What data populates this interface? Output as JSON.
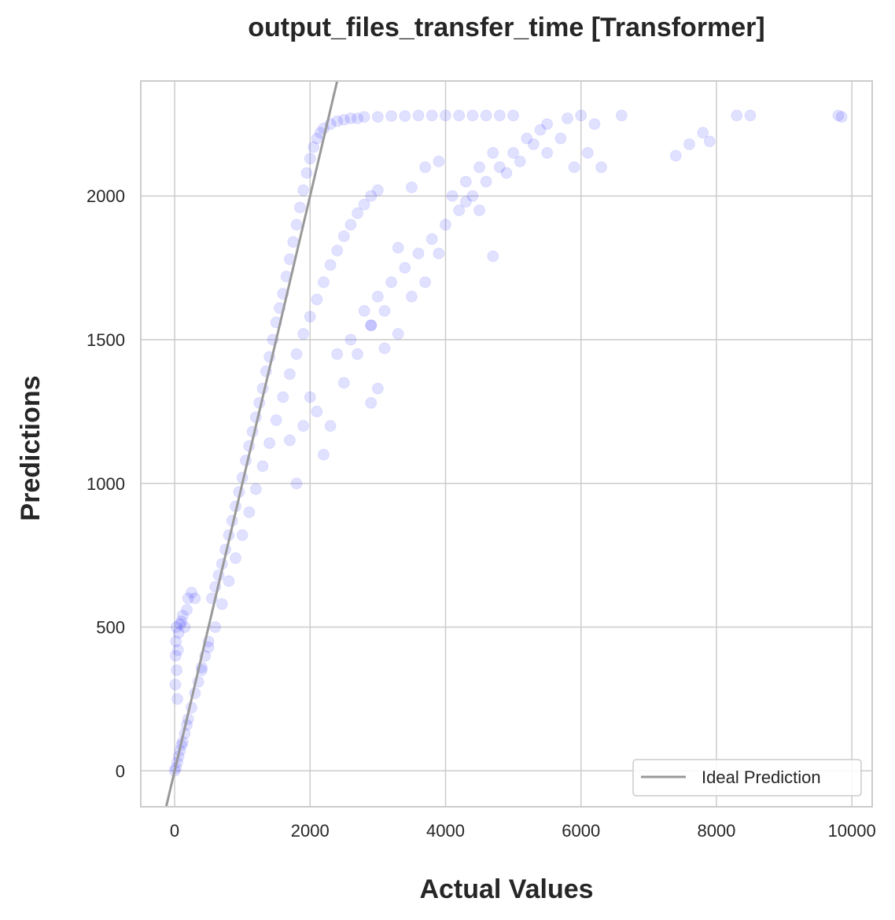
{
  "chart_data": {
    "type": "scatter",
    "title": "output_files_transfer_time [Transformer]",
    "xlabel": "Actual Values",
    "ylabel": "Predictions",
    "xlim": [
      -500,
      10300
    ],
    "ylim": [
      -125,
      2400
    ],
    "xticks": [
      0,
      2000,
      4000,
      6000,
      8000,
      10000
    ],
    "yticks": [
      0,
      500,
      1000,
      1500,
      2000
    ],
    "xtick_labels": [
      "0",
      "2000",
      "4000",
      "6000",
      "8000",
      "10000"
    ],
    "ytick_labels": [
      "0",
      "500",
      "1000",
      "1500",
      "2000"
    ],
    "grid": true,
    "legend": {
      "position": "lower-right",
      "entries": [
        "Ideal Prediction"
      ]
    },
    "colors": {
      "points": "#0000ff",
      "ideal_line": "#999999",
      "grid": "#cccccc",
      "spine": "#cccccc"
    },
    "point_opacity": 0.12,
    "ideal_line": {
      "label": "Ideal Prediction",
      "slope": 1,
      "intercept": 0
    },
    "series": [
      {
        "name": "Predictions",
        "points": [
          [
            0,
            0
          ],
          [
            20,
            10
          ],
          [
            40,
            30
          ],
          [
            60,
            50
          ],
          [
            80,
            70
          ],
          [
            100,
            90
          ],
          [
            120,
            100
          ],
          [
            150,
            130
          ],
          [
            180,
            160
          ],
          [
            200,
            180
          ],
          [
            250,
            220
          ],
          [
            300,
            270
          ],
          [
            350,
            310
          ],
          [
            400,
            360
          ],
          [
            450,
            400
          ],
          [
            500,
            450
          ],
          [
            10,
            300
          ],
          [
            15,
            400
          ],
          [
            20,
            450
          ],
          [
            25,
            500
          ],
          [
            30,
            350
          ],
          [
            40,
            250
          ],
          [
            50,
            420
          ],
          [
            60,
            480
          ],
          [
            80,
            510
          ],
          [
            100,
            520
          ],
          [
            120,
            540
          ],
          [
            150,
            500
          ],
          [
            180,
            560
          ],
          [
            200,
            600
          ],
          [
            250,
            620
          ],
          [
            300,
            600
          ],
          [
            550,
            600
          ],
          [
            600,
            640
          ],
          [
            650,
            680
          ],
          [
            700,
            720
          ],
          [
            750,
            770
          ],
          [
            800,
            820
          ],
          [
            850,
            870
          ],
          [
            900,
            920
          ],
          [
            950,
            970
          ],
          [
            1000,
            1020
          ],
          [
            1050,
            1080
          ],
          [
            1100,
            1130
          ],
          [
            1150,
            1180
          ],
          [
            1200,
            1230
          ],
          [
            1250,
            1280
          ],
          [
            1300,
            1330
          ],
          [
            1350,
            1390
          ],
          [
            1400,
            1440
          ],
          [
            1450,
            1500
          ],
          [
            1500,
            1560
          ],
          [
            1550,
            1610
          ],
          [
            1600,
            1660
          ],
          [
            1650,
            1720
          ],
          [
            1700,
            1780
          ],
          [
            1750,
            1840
          ],
          [
            1800,
            1900
          ],
          [
            1850,
            1960
          ],
          [
            1900,
            2020
          ],
          [
            1950,
            2080
          ],
          [
            2000,
            2130
          ],
          [
            2050,
            2170
          ],
          [
            2100,
            2200
          ],
          [
            2150,
            2220
          ],
          [
            2200,
            2235
          ],
          [
            2300,
            2250
          ],
          [
            2400,
            2260
          ],
          [
            2500,
            2265
          ],
          [
            2600,
            2270
          ],
          [
            2700,
            2270
          ],
          [
            2800,
            2275
          ],
          [
            3000,
            2275
          ],
          [
            3200,
            2278
          ],
          [
            3400,
            2278
          ],
          [
            3600,
            2280
          ],
          [
            3800,
            2280
          ],
          [
            400,
            350
          ],
          [
            500,
            430
          ],
          [
            600,
            500
          ],
          [
            700,
            580
          ],
          [
            800,
            660
          ],
          [
            900,
            740
          ],
          [
            1000,
            820
          ],
          [
            1100,
            900
          ],
          [
            1200,
            980
          ],
          [
            1300,
            1060
          ],
          [
            1400,
            1140
          ],
          [
            1500,
            1220
          ],
          [
            1600,
            1300
          ],
          [
            1700,
            1380
          ],
          [
            1800,
            1450
          ],
          [
            1900,
            1520
          ],
          [
            2000,
            1580
          ],
          [
            2100,
            1640
          ],
          [
            2200,
            1700
          ],
          [
            2300,
            1760
          ],
          [
            2400,
            1810
          ],
          [
            2500,
            1860
          ],
          [
            2600,
            1900
          ],
          [
            2700,
            1940
          ],
          [
            2800,
            1970
          ],
          [
            2900,
            2000
          ],
          [
            3000,
            2020
          ],
          [
            1700,
            1150
          ],
          [
            1900,
            1200
          ],
          [
            2100,
            1250
          ],
          [
            2300,
            1200
          ],
          [
            2200,
            1100
          ],
          [
            1800,
            1000
          ],
          [
            2000,
            1300
          ],
          [
            2400,
            1450
          ],
          [
            2600,
            1500
          ],
          [
            2800,
            1600
          ],
          [
            3000,
            1650
          ],
          [
            3200,
            1700
          ],
          [
            3400,
            1750
          ],
          [
            3600,
            1800
          ],
          [
            3800,
            1850
          ],
          [
            4000,
            1900
          ],
          [
            4200,
            1950
          ],
          [
            4400,
            2000
          ],
          [
            4600,
            2050
          ],
          [
            4800,
            2100
          ],
          [
            5000,
            2150
          ],
          [
            5200,
            2200
          ],
          [
            5400,
            2230
          ],
          [
            2500,
            1350
          ],
          [
            2700,
            1450
          ],
          [
            2900,
            1550
          ],
          [
            3100,
            1600
          ],
          [
            2900,
            1280
          ],
          [
            3000,
            1330
          ],
          [
            3300,
            1820
          ],
          [
            3500,
            1650
          ],
          [
            3700,
            1700
          ],
          [
            3900,
            1800
          ],
          [
            4100,
            2000
          ],
          [
            4300,
            2050
          ],
          [
            4500,
            2100
          ],
          [
            4700,
            2150
          ],
          [
            4900,
            2080
          ],
          [
            5100,
            2120
          ],
          [
            5300,
            2180
          ],
          [
            5500,
            2150
          ],
          [
            5700,
            2200
          ],
          [
            5900,
            2100
          ],
          [
            6100,
            2150
          ],
          [
            6300,
            2100
          ],
          [
            6000,
            2280
          ],
          [
            6600,
            2280
          ],
          [
            7400,
            2140
          ],
          [
            7600,
            2180
          ],
          [
            7800,
            2220
          ],
          [
            7900,
            2190
          ],
          [
            8300,
            2280
          ],
          [
            8500,
            2280
          ],
          [
            9800,
            2280
          ],
          [
            9850,
            2275
          ],
          [
            4000,
            2280
          ],
          [
            4400,
            2280
          ],
          [
            4800,
            2280
          ],
          [
            5000,
            2280
          ],
          [
            4600,
            2280
          ],
          [
            4200,
            2280
          ],
          [
            5500,
            2250
          ],
          [
            5800,
            2270
          ],
          [
            6200,
            2250
          ],
          [
            3500,
            2030
          ],
          [
            3700,
            2100
          ],
          [
            3900,
            2120
          ],
          [
            4300,
            1980
          ],
          [
            4500,
            1950
          ],
          [
            4700,
            1790
          ],
          [
            3300,
            1520
          ],
          [
            3100,
            1470
          ],
          [
            2900,
            1550
          ]
        ]
      }
    ]
  }
}
